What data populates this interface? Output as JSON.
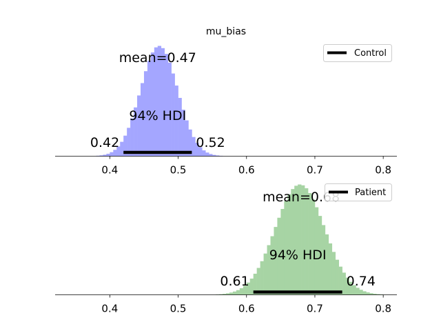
{
  "figure": {
    "title": "mu_bias"
  },
  "chart_data": [
    {
      "type": "histogram",
      "title": "mu_bias",
      "xlabel": "",
      "ylabel": "",
      "xlim": [
        0.32,
        0.82
      ],
      "xticks": [
        "0.4",
        "0.5",
        "0.6",
        "0.7",
        "0.8"
      ],
      "xtick_values": [
        0.4,
        0.5,
        0.6,
        0.7,
        0.8
      ],
      "grid": false,
      "legend_position": "top-right",
      "color": "#a4a6ff",
      "hdi_color": "#000000",
      "series": [
        {
          "name": "Control",
          "mean": 0.47,
          "hdi_low": 0.42,
          "hdi_high": 0.52,
          "mean_label": "mean=0.47",
          "hdi_label": "94% HDI",
          "hdi_low_label": "0.42",
          "hdi_high_label": "0.52",
          "distribution": {
            "mean": 0.472,
            "sd": 0.027,
            "min": 0.33,
            "max": 0.57
          }
        }
      ]
    },
    {
      "type": "histogram",
      "title": "",
      "xlabel": "",
      "ylabel": "",
      "xlim": [
        0.32,
        0.82
      ],
      "xticks": [
        "0.4",
        "0.5",
        "0.6",
        "0.7",
        "0.8"
      ],
      "xtick_values": [
        0.4,
        0.5,
        0.6,
        0.7,
        0.8
      ],
      "grid": false,
      "legend_position": "top-right",
      "color": "#a7d4a4",
      "hdi_color": "#000000",
      "series": [
        {
          "name": "Patient",
          "mean": 0.68,
          "hdi_low": 0.61,
          "hdi_high": 0.74,
          "mean_label": "mean=0.68",
          "hdi_label": "94% HDI",
          "hdi_low_label": "0.61",
          "hdi_high_label": "0.74",
          "distribution": {
            "mean": 0.678,
            "sd": 0.036,
            "min": 0.55,
            "max": 0.8
          }
        }
      ]
    }
  ]
}
